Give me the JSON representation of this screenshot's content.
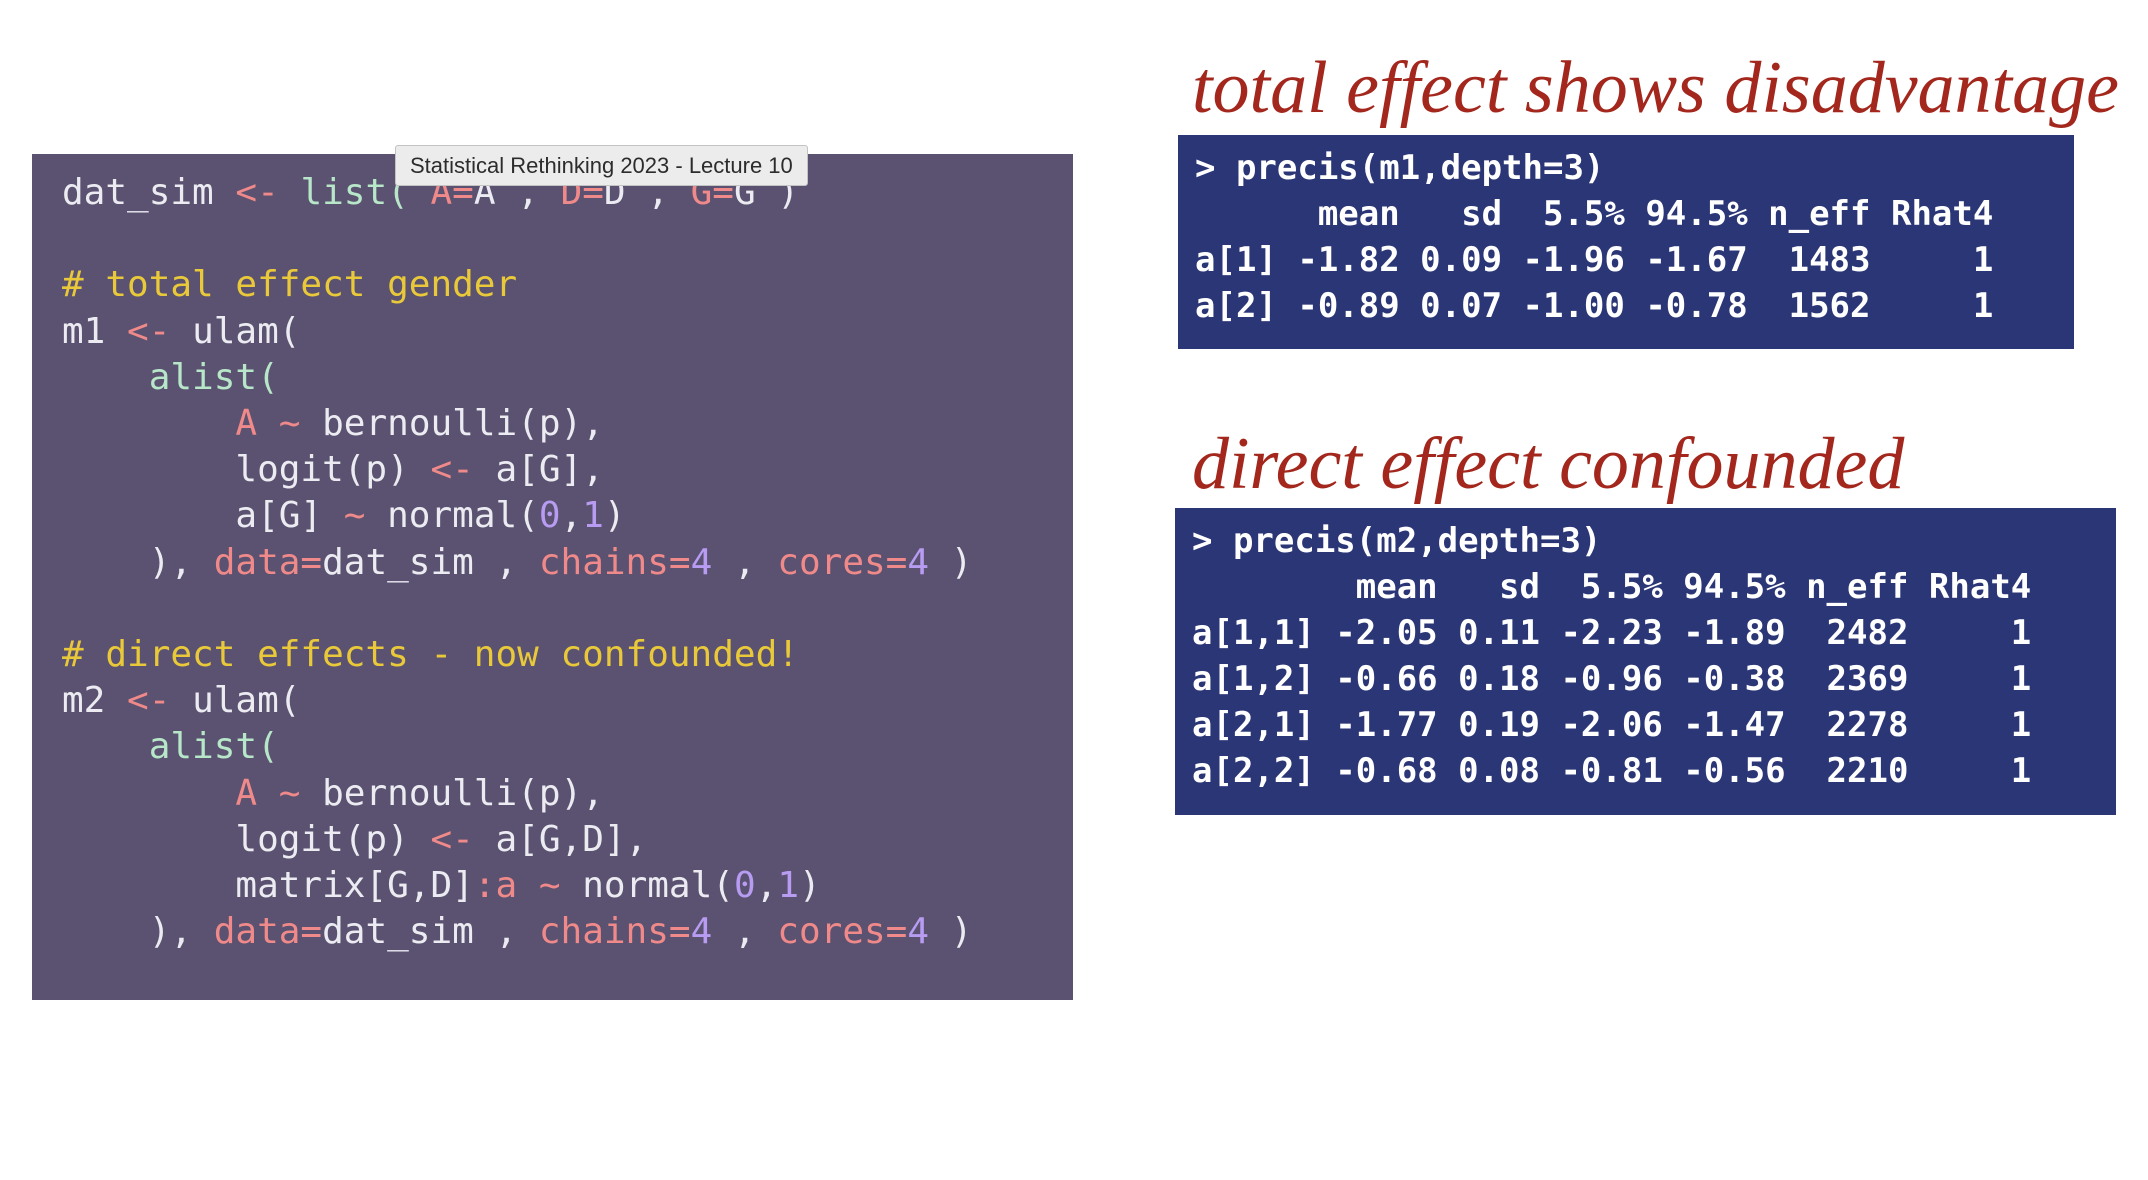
{
  "tooltip": "Statistical Rethinking 2023 - Lecture 10",
  "code": {
    "l1": {
      "var": "dat_sim ",
      "assign": "<-",
      "sp": " ",
      "fn": "list(",
      "sp2": " ",
      "a_key": "A=",
      "a_val": "A , ",
      "d_key": "D=",
      "d_val": "D , ",
      "g_key": "G=",
      "g_val": "G )"
    },
    "l2": " ",
    "l3": "# total effect gender",
    "l4": {
      "var": "m1 ",
      "assign": "<-",
      "rest": " ulam("
    },
    "l5": {
      "indent": "    ",
      "fn": "alist("
    },
    "l6": {
      "indent": "        ",
      "lhs": "A",
      "sp": " ",
      "tilde": "~",
      "rest": " bernoulli(p),"
    },
    "l7": {
      "indent": "        ",
      "lhs": "logit(p) ",
      "assign": "<-",
      "rest": " a[G],"
    },
    "l8": {
      "indent": "        ",
      "lhs": "a[G] ",
      "tilde": "~",
      "fn": " normal(",
      "n1": "0",
      "comma": ",",
      "n2": "1",
      "close": ")"
    },
    "l9": {
      "indent": "    ",
      "open": "), ",
      "data_key": "data=",
      "data_val": "dat_sim , ",
      "chains_key": "chains=",
      "chains_val": "4",
      "sep": " , ",
      "cores_key": "cores=",
      "cores_val": "4",
      "close": " )"
    },
    "l10": " ",
    "l11": "# direct effects - now confounded!",
    "l12": {
      "var": "m2 ",
      "assign": "<-",
      "rest": " ulam("
    },
    "l13": {
      "indent": "    ",
      "fn": "alist("
    },
    "l14": {
      "indent": "        ",
      "lhs": "A",
      "sp": " ",
      "tilde": "~",
      "rest": " bernoulli(p),"
    },
    "l15": {
      "indent": "        ",
      "lhs": "logit(p) ",
      "assign": "<-",
      "rest": " a[G,D],"
    },
    "l16": {
      "indent": "        ",
      "lhs": "matrix[G,D]",
      "colon": ":",
      "name": "a",
      "sp": " ",
      "tilde": "~",
      "fn": " normal(",
      "n1": "0",
      "comma": ",",
      "n2": "1",
      "close": ")"
    },
    "l17": {
      "indent": "    ",
      "open": "), ",
      "data_key": "data=",
      "data_val": "dat_sim , ",
      "chains_key": "chains=",
      "chains_val": "4",
      "sep": " , ",
      "cores_key": "cores=",
      "cores_val": "4",
      "close": " )"
    }
  },
  "headings": {
    "total": "total effect shows disadvantage",
    "direct": "direct effect confounded"
  },
  "output1": {
    "command": "> precis(m1,depth=3)",
    "header": "      mean   sd  5.5% 94.5% n_eff Rhat4",
    "rows": [
      "a[1] -1.82 0.09 -1.96 -1.67  1483     1",
      "a[2] -0.89 0.07 -1.00 -0.78  1562     1"
    ]
  },
  "output2": {
    "command": "> precis(m2,depth=3)",
    "header": "        mean   sd  5.5% 94.5% n_eff Rhat4",
    "rows": [
      "a[1,1] -2.05 0.11 -2.23 -1.89  2482     1",
      "a[1,2] -0.66 0.18 -0.96 -0.38  2369     1",
      "a[2,1] -1.77 0.19 -2.06 -1.47  2278     1",
      "a[2,2] -0.68 0.08 -0.81 -0.56  2210     1"
    ]
  }
}
